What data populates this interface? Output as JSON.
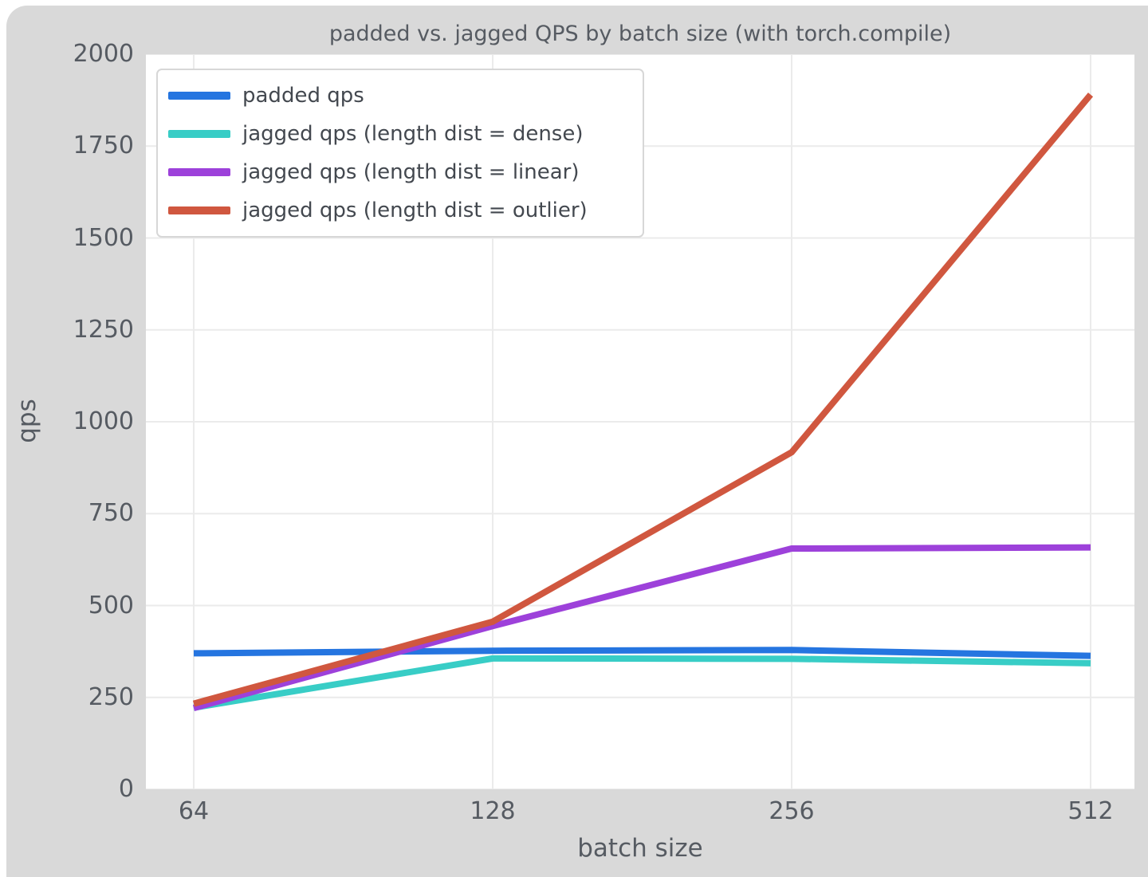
{
  "figure": {
    "background_color": "#d9d9d9",
    "plot_background_color": "#ffffff",
    "grid_color": "#ebebeb",
    "text_color": "#565b62"
  },
  "chart_data": {
    "type": "line",
    "title": "padded vs. jagged QPS by batch size (with torch.compile)",
    "xlabel": "batch size",
    "ylabel": "qps",
    "categories": [
      64,
      128,
      256,
      512
    ],
    "ylim": [
      0,
      2000
    ],
    "yticks": [
      0,
      250,
      500,
      750,
      1000,
      1250,
      1500,
      1750,
      2000
    ],
    "grid": true,
    "legend_position": "upper left",
    "series": [
      {
        "name": "padded qps",
        "color": "#2575e0",
        "values": [
          370,
          377,
          379,
          363
        ]
      },
      {
        "name": "jagged qps (length dist = dense)",
        "color": "#38cdc6",
        "values": [
          222,
          356,
          355,
          343
        ]
      },
      {
        "name": "jagged qps (length dist = linear)",
        "color": "#9d41da",
        "values": [
          221,
          444,
          655,
          658
        ]
      },
      {
        "name": "jagged qps (length dist = outlier)",
        "color": "#d0573f",
        "values": [
          233,
          456,
          917,
          1890
        ]
      }
    ]
  }
}
